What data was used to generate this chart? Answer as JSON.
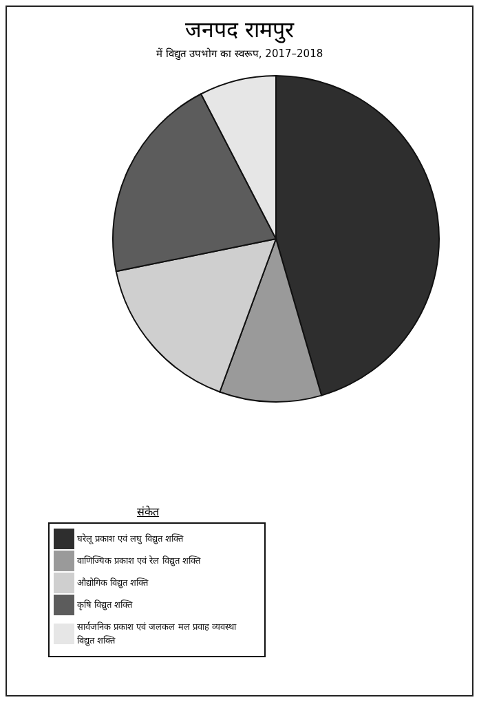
{
  "chart_data": {
    "type": "pie",
    "title": "जनपद रामपुर",
    "subtitle": "में विद्युत उपभोग का स्वरूप, 2017–2018",
    "legend_title": "संकेत",
    "legend": "bottom left",
    "categories": [
      "घरेलू प्रकाश एवं लघु विद्युत शक्ति",
      "वाणिज्यिक प्रकाश एवं रेल विद्युत शक्ति",
      "औद्योगिक विद्युत शक्ति",
      "कृषि विद्युत शक्ति",
      "सार्वजनिक प्रकाश एवं जलकल मल प्रवाह व्यवस्था विद्युत शक्ति"
    ],
    "values": [
      45.5,
      10.1,
      16.2,
      20.6,
      7.6
    ],
    "colors": [
      "#2e2e2e",
      "#9a9a9a",
      "#cfcfcf",
      "#5c5c5c",
      "#e6e6e6"
    ]
  }
}
